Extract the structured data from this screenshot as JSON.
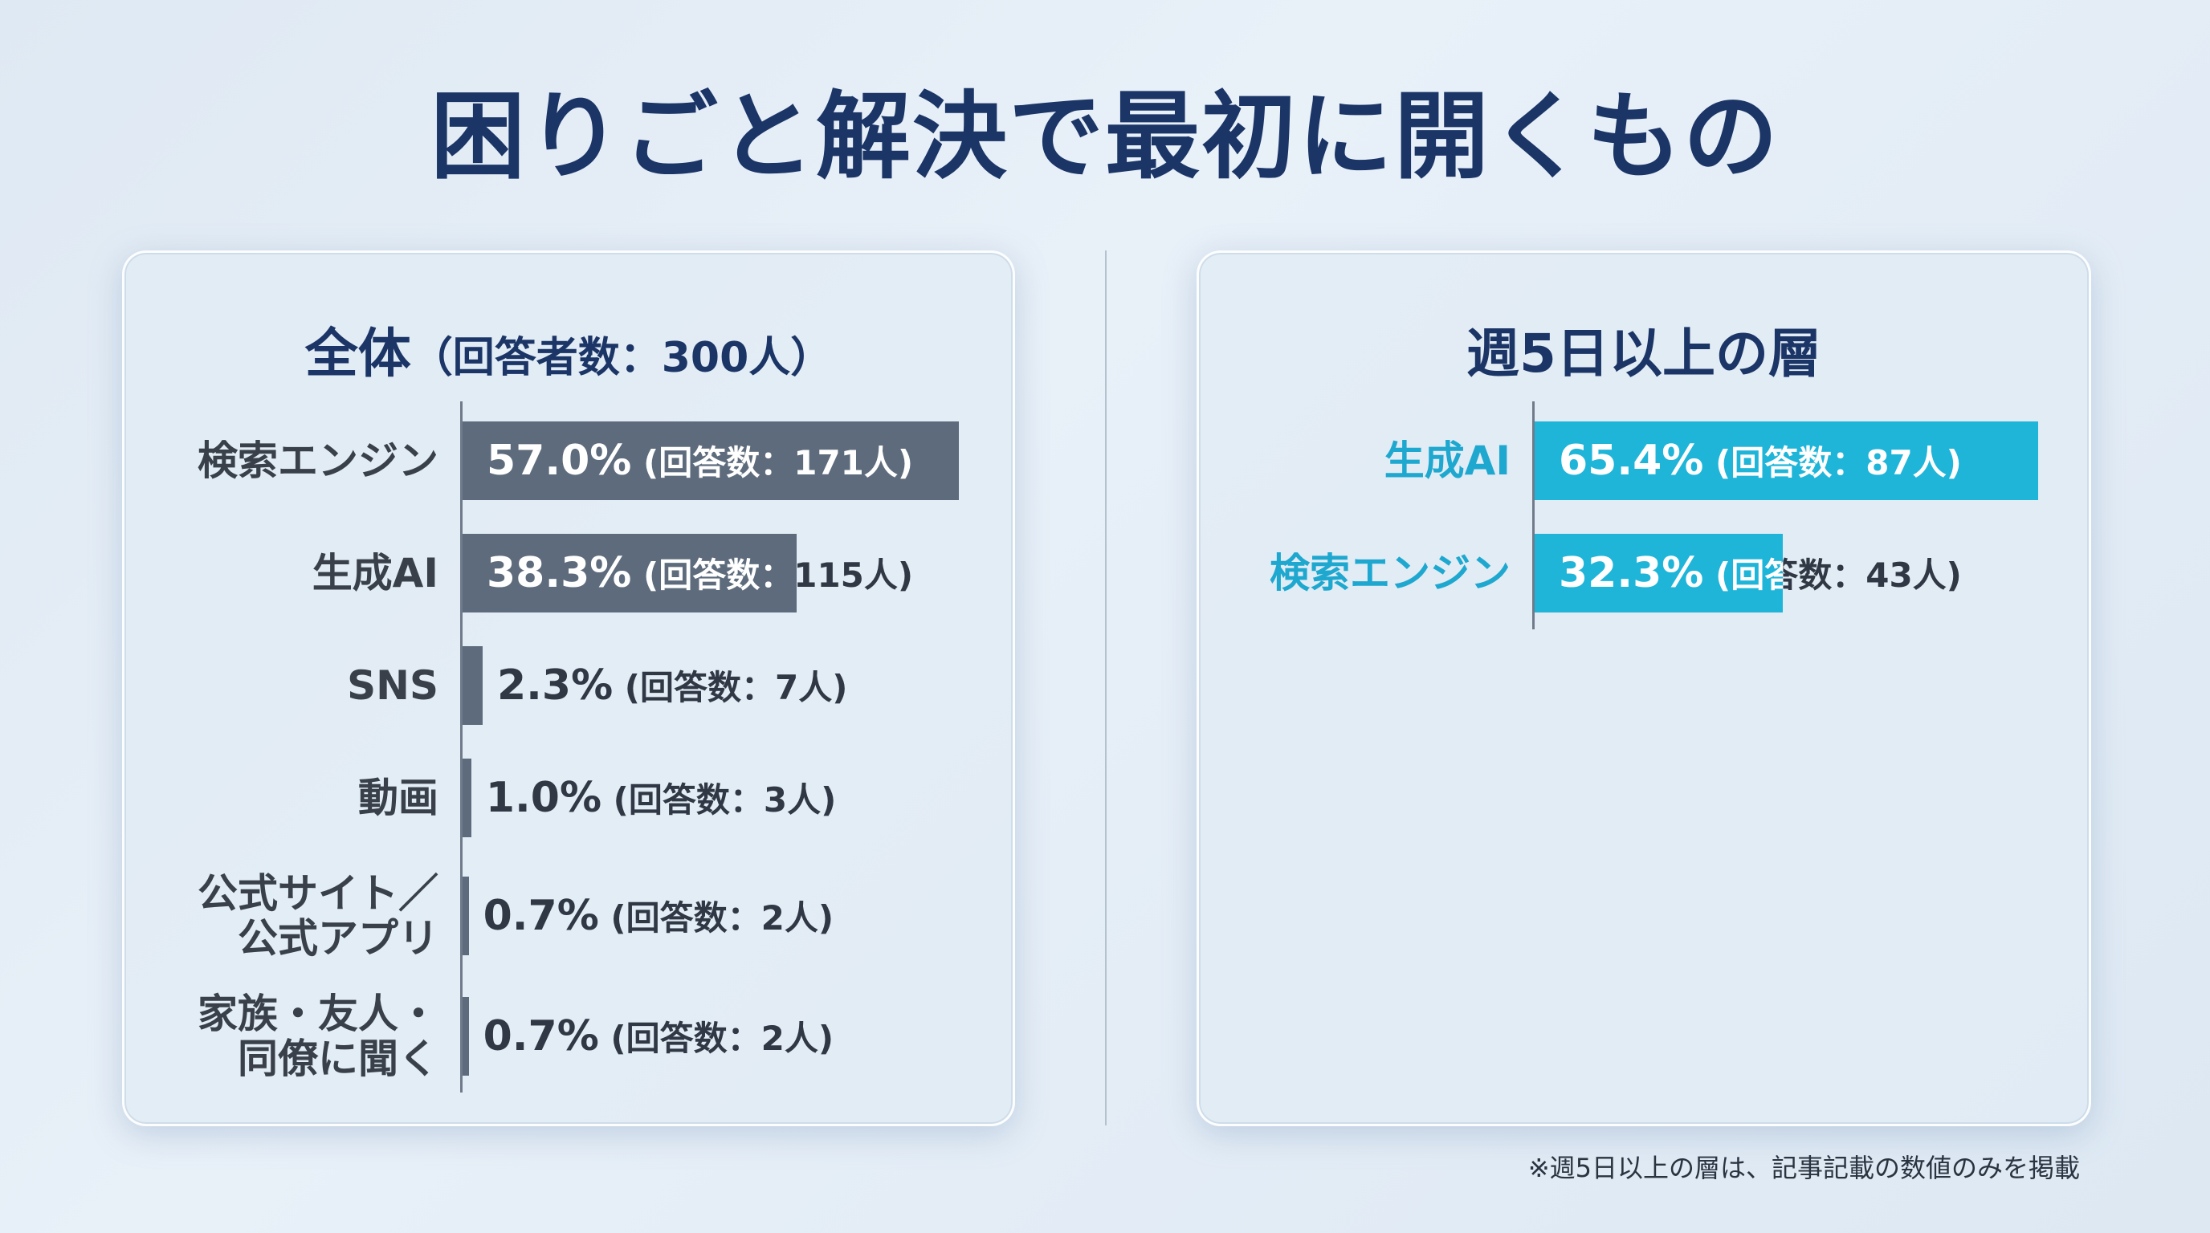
{
  "title": "困りごと解決で最初に開くもの",
  "footnote": "※週5日以上の層は、記事記載の数値のみを掲載",
  "colors": {
    "title": "#1b3566",
    "overall_bar": "#5d6b7c",
    "overall_label": "#39404a",
    "weekly_bar": "#1fb5d9",
    "weekly_label": "#1fa8cf"
  },
  "chart_data": [
    {
      "type": "bar",
      "orientation": "horizontal",
      "title": "全体",
      "subtitle": "（回答者数：300人）",
      "categories": [
        [
          "検索エンジン"
        ],
        [
          "生成AI"
        ],
        [
          "SNS"
        ],
        [
          "動画"
        ],
        [
          "公式サイト／",
          "公式アプリ"
        ],
        [
          "家族・友人・",
          "同僚に聞く"
        ]
      ],
      "values": [
        57.0,
        38.3,
        2.3,
        1.0,
        0.7,
        0.7
      ],
      "value_labels": [
        "57.0%",
        "38.3%",
        "2.3%",
        "1.0%",
        "0.7%",
        "0.7%"
      ],
      "count_labels": [
        "(回答数：171人)",
        "(回答数：115人)",
        "(回答数：7人)",
        "(回答数：3人)",
        "(回答数：2人)",
        "(回答数：2人)"
      ],
      "xlim": [
        0,
        100
      ]
    },
    {
      "type": "bar",
      "orientation": "horizontal",
      "title": "週5日以上の層",
      "subtitle": "",
      "categories": [
        [
          "生成AI"
        ],
        [
          "検索エンジン"
        ]
      ],
      "values": [
        65.4,
        32.3
      ],
      "value_labels": [
        "65.4%",
        "32.3%"
      ],
      "count_labels": [
        "(回答数：87人)",
        "(回答数：43人)"
      ],
      "xlim": [
        0,
        100
      ]
    }
  ]
}
